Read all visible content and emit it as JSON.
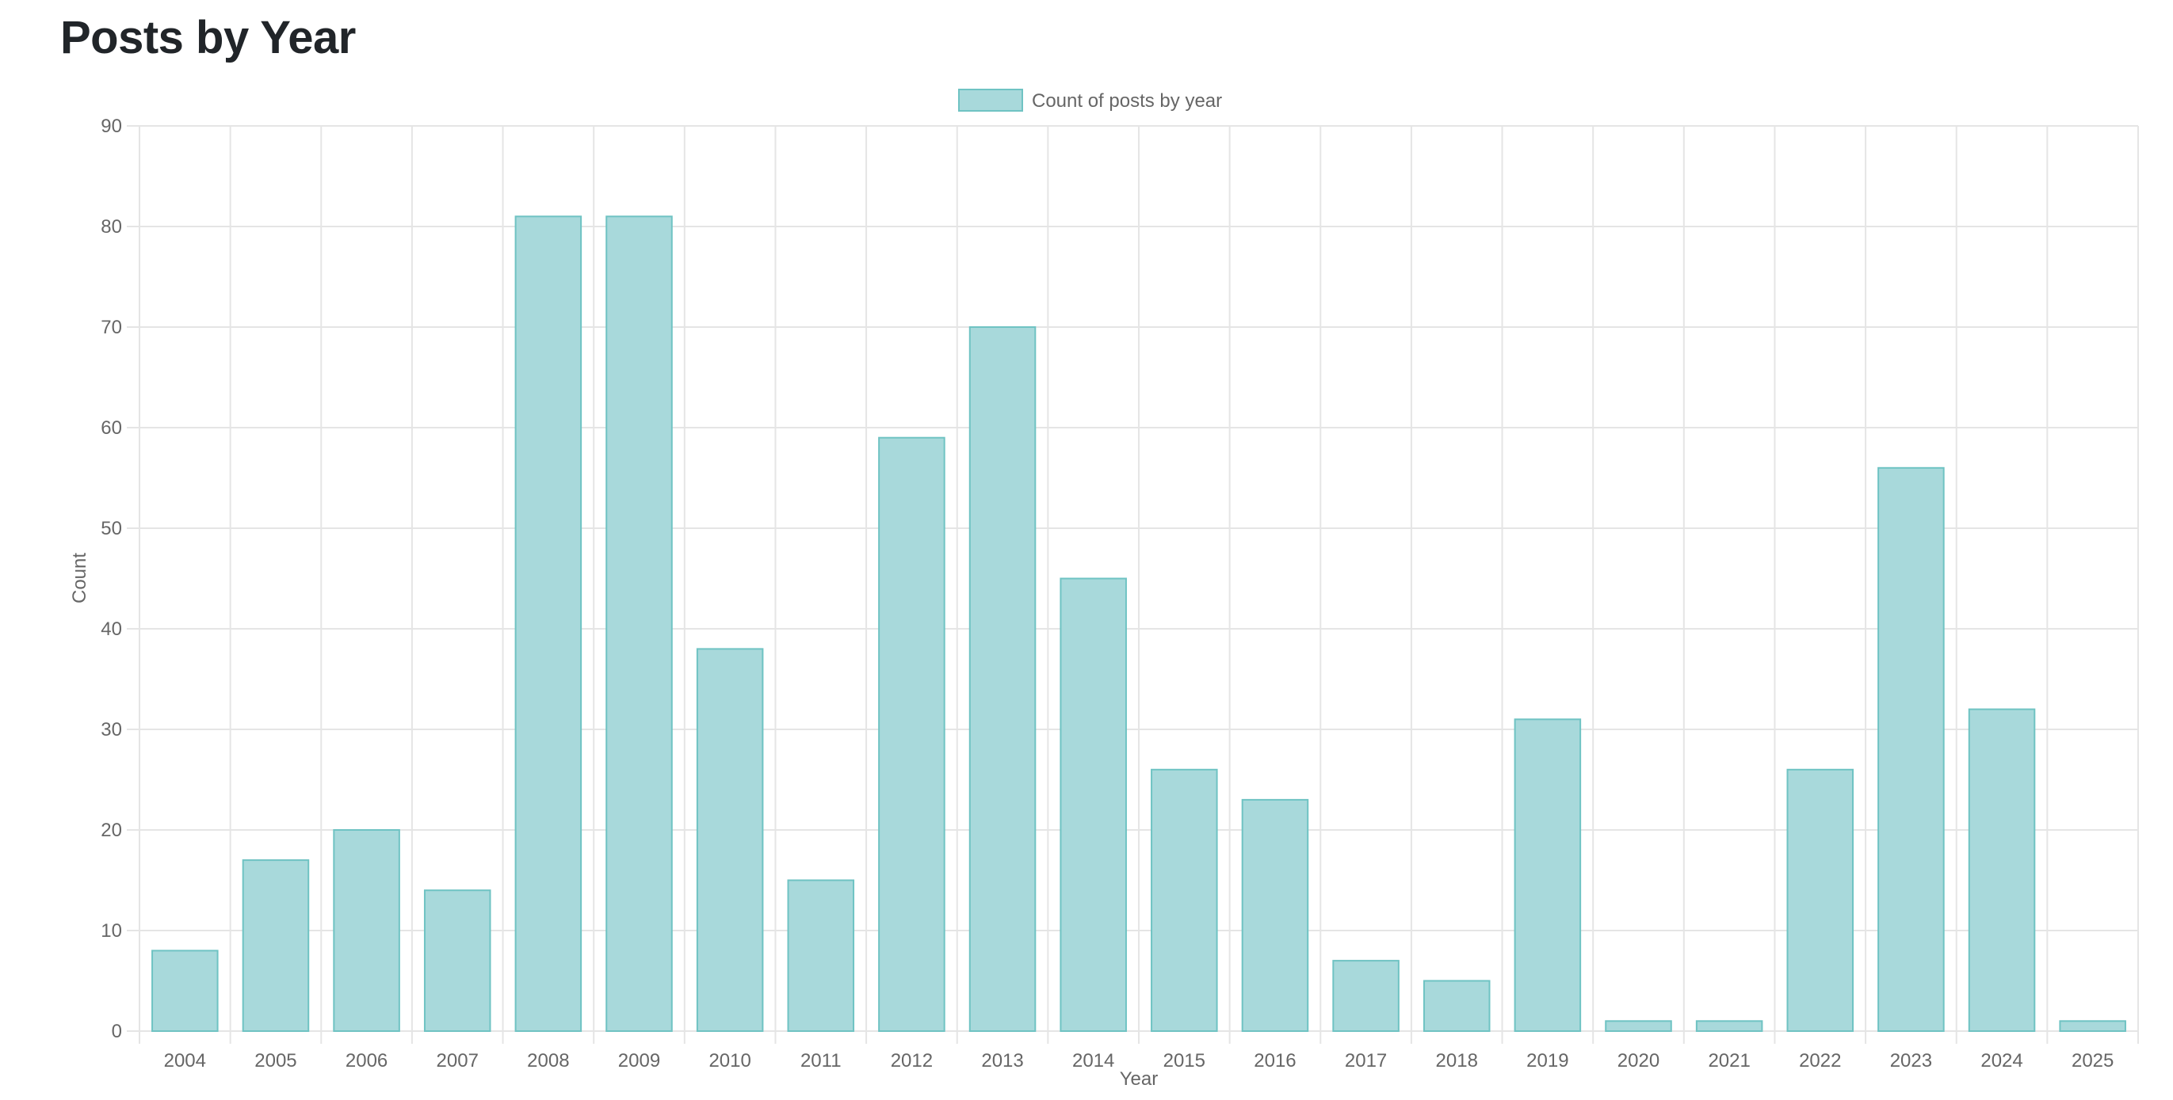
{
  "page": {
    "title": "Posts by Year"
  },
  "chart_data": {
    "type": "bar",
    "title": "",
    "xlabel": "Year",
    "ylabel": "Count",
    "ylim": [
      0,
      90
    ],
    "ytick_step": 10,
    "grid": true,
    "legend_position": "top-center",
    "colors": {
      "bar_fill": "#a8d9db",
      "bar_stroke": "#6fc3c3",
      "grid": "#e5e5e5",
      "text": "#666666"
    },
    "categories": [
      "2004",
      "2005",
      "2006",
      "2007",
      "2008",
      "2009",
      "2010",
      "2011",
      "2012",
      "2013",
      "2014",
      "2015",
      "2016",
      "2017",
      "2018",
      "2019",
      "2020",
      "2021",
      "2022",
      "2023",
      "2024",
      "2025"
    ],
    "series": [
      {
        "name": "Count of posts by year",
        "values": [
          8,
          17,
          20,
          14,
          81,
          81,
          38,
          15,
          59,
          70,
          45,
          26,
          23,
          7,
          5,
          31,
          1,
          1,
          26,
          56,
          32,
          1
        ]
      }
    ]
  }
}
